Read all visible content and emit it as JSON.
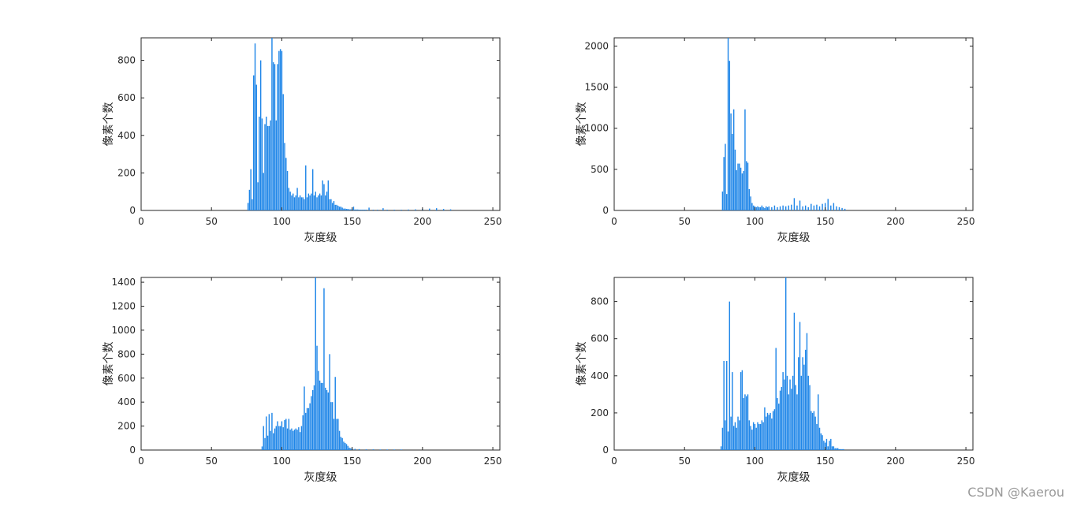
{
  "chart_data": [
    {
      "type": "bar",
      "xlabel": "灰度级",
      "ylabel": "像素个数",
      "xlim": [
        0,
        255
      ],
      "ylim": [
        0,
        920
      ],
      "xticks": [
        0,
        50,
        100,
        150,
        200,
        250
      ],
      "yticks": [
        0,
        200,
        400,
        600,
        800
      ],
      "bar_color": "#1f86e8",
      "x": [
        76,
        77,
        78,
        79,
        80,
        81,
        82,
        83,
        84,
        85,
        86,
        87,
        88,
        89,
        90,
        91,
        92,
        93,
        94,
        95,
        96,
        97,
        98,
        99,
        100,
        101,
        102,
        103,
        104,
        105,
        106,
        107,
        108,
        109,
        110,
        111,
        112,
        113,
        114,
        115,
        116,
        117,
        118,
        119,
        120,
        121,
        122,
        123,
        124,
        125,
        126,
        127,
        128,
        129,
        130,
        131,
        132,
        133,
        134,
        135,
        136,
        137,
        138,
        139,
        140,
        141,
        142,
        143,
        144,
        145,
        146,
        147,
        148,
        149,
        150,
        151,
        152,
        153,
        154,
        155,
        156,
        157,
        158,
        159,
        160,
        162,
        165,
        168,
        172,
        175,
        180,
        185,
        190,
        195,
        200,
        205,
        210,
        215,
        220
      ],
      "values": [
        40,
        110,
        220,
        60,
        720,
        890,
        670,
        150,
        500,
        800,
        490,
        200,
        460,
        500,
        450,
        450,
        480,
        920,
        790,
        780,
        480,
        780,
        850,
        860,
        850,
        620,
        360,
        280,
        210,
        120,
        100,
        80,
        90,
        70,
        80,
        120,
        70,
        80,
        70,
        70,
        60,
        240,
        70,
        90,
        80,
        90,
        220,
        80,
        100,
        70,
        80,
        90,
        80,
        160,
        140,
        80,
        100,
        160,
        60,
        60,
        40,
        50,
        30,
        30,
        25,
        20,
        20,
        15,
        10,
        10,
        8,
        8,
        6,
        6,
        5,
        20,
        5,
        5,
        5,
        4,
        4,
        4,
        4,
        4,
        4,
        15,
        4,
        4,
        12,
        4,
        4,
        4,
        5,
        6,
        8,
        10,
        12,
        8,
        6
      ]
    },
    {
      "type": "bar",
      "xlabel": "灰度级",
      "ylabel": "像素个数",
      "xlim": [
        0,
        255
      ],
      "ylim": [
        0,
        2100
      ],
      "xticks": [
        0,
        50,
        100,
        150,
        200,
        250
      ],
      "yticks": [
        0,
        500,
        1000,
        1500,
        2000
      ],
      "bar_color": "#1f86e8",
      "x": [
        77,
        78,
        79,
        80,
        81,
        82,
        83,
        84,
        85,
        86,
        87,
        88,
        89,
        90,
        91,
        92,
        93,
        94,
        95,
        96,
        97,
        98,
        99,
        100,
        101,
        102,
        103,
        104,
        105,
        106,
        107,
        108,
        109,
        110,
        112,
        114,
        116,
        118,
        120,
        122,
        124,
        126,
        128,
        130,
        132,
        134,
        136,
        138,
        140,
        142,
        144,
        146,
        148,
        150,
        152,
        154,
        156,
        158,
        160,
        162,
        164
      ],
      "values": [
        230,
        650,
        810,
        200,
        2100,
        1820,
        1180,
        930,
        1230,
        740,
        490,
        570,
        570,
        520,
        450,
        480,
        1230,
        600,
        580,
        260,
        170,
        90,
        60,
        50,
        40,
        50,
        40,
        40,
        60,
        40,
        30,
        50,
        40,
        50,
        40,
        60,
        40,
        50,
        60,
        50,
        60,
        70,
        150,
        60,
        120,
        50,
        60,
        40,
        80,
        60,
        70,
        50,
        80,
        90,
        140,
        60,
        90,
        50,
        40,
        30,
        20
      ]
    },
    {
      "type": "bar",
      "xlabel": "灰度级",
      "ylabel": "像素个数",
      "xlim": [
        0,
        255
      ],
      "ylim": [
        0,
        1440
      ],
      "xticks": [
        0,
        50,
        100,
        150,
        200,
        250
      ],
      "yticks": [
        0,
        200,
        400,
        600,
        800,
        1000,
        1200,
        1400
      ],
      "bar_color": "#1f86e8",
      "x": [
        86,
        87,
        88,
        89,
        90,
        91,
        92,
        93,
        94,
        95,
        96,
        97,
        98,
        99,
        100,
        101,
        102,
        103,
        104,
        105,
        106,
        107,
        108,
        109,
        110,
        111,
        112,
        113,
        114,
        115,
        116,
        117,
        118,
        119,
        120,
        121,
        122,
        123,
        124,
        125,
        126,
        127,
        128,
        129,
        130,
        131,
        132,
        133,
        134,
        135,
        136,
        137,
        138,
        139,
        140,
        141,
        142,
        143,
        144,
        145,
        146,
        147,
        148,
        149,
        150,
        152,
        155,
        160,
        165,
        170,
        175,
        180,
        185
      ],
      "values": [
        30,
        200,
        100,
        280,
        120,
        300,
        160,
        310,
        140,
        180,
        200,
        240,
        200,
        200,
        240,
        190,
        250,
        260,
        180,
        260,
        170,
        180,
        160,
        170,
        180,
        170,
        190,
        150,
        200,
        290,
        530,
        310,
        350,
        350,
        390,
        450,
        500,
        540,
        1440,
        870,
        660,
        580,
        560,
        560,
        1350,
        520,
        500,
        480,
        800,
        400,
        400,
        260,
        610,
        260,
        260,
        160,
        110,
        100,
        70,
        60,
        50,
        35,
        20,
        15,
        12,
        10,
        8,
        6,
        6,
        5,
        5,
        5,
        5
      ]
    },
    {
      "type": "bar",
      "xlabel": "灰度级",
      "ylabel": "像素个数",
      "xlim": [
        0,
        255
      ],
      "ylim": [
        0,
        930
      ],
      "xticks": [
        0,
        50,
        100,
        150,
        200,
        250
      ],
      "yticks": [
        0,
        200,
        400,
        600,
        800
      ],
      "bar_color": "#1f86e8",
      "x": [
        76,
        77,
        78,
        79,
        80,
        81,
        82,
        83,
        84,
        85,
        86,
        87,
        88,
        89,
        90,
        91,
        92,
        93,
        94,
        95,
        96,
        97,
        98,
        99,
        100,
        101,
        102,
        103,
        104,
        105,
        106,
        107,
        108,
        109,
        110,
        111,
        112,
        113,
        114,
        115,
        116,
        117,
        118,
        119,
        120,
        121,
        122,
        123,
        124,
        125,
        126,
        127,
        128,
        129,
        130,
        131,
        132,
        133,
        134,
        135,
        136,
        137,
        138,
        139,
        140,
        141,
        142,
        143,
        144,
        145,
        146,
        147,
        148,
        149,
        150,
        151,
        152,
        153,
        154,
        155,
        156,
        157,
        158,
        159,
        160,
        161,
        162,
        163
      ],
      "values": [
        20,
        120,
        480,
        160,
        480,
        100,
        800,
        180,
        420,
        130,
        150,
        120,
        180,
        160,
        420,
        430,
        280,
        300,
        290,
        300,
        160,
        130,
        110,
        150,
        140,
        120,
        150,
        140,
        140,
        160,
        150,
        230,
        180,
        200,
        190,
        200,
        170,
        210,
        220,
        550,
        280,
        250,
        320,
        340,
        420,
        380,
        930,
        400,
        300,
        380,
        330,
        400,
        740,
        350,
        300,
        500,
        690,
        400,
        500,
        460,
        540,
        630,
        400,
        350,
        210,
        200,
        210,
        180,
        140,
        300,
        120,
        90,
        80,
        50,
        40,
        60,
        20,
        50,
        60,
        20,
        20,
        10,
        10,
        10,
        5,
        5,
        5,
        5
      ]
    }
  ],
  "watermark": "CSDN @Kaerou"
}
